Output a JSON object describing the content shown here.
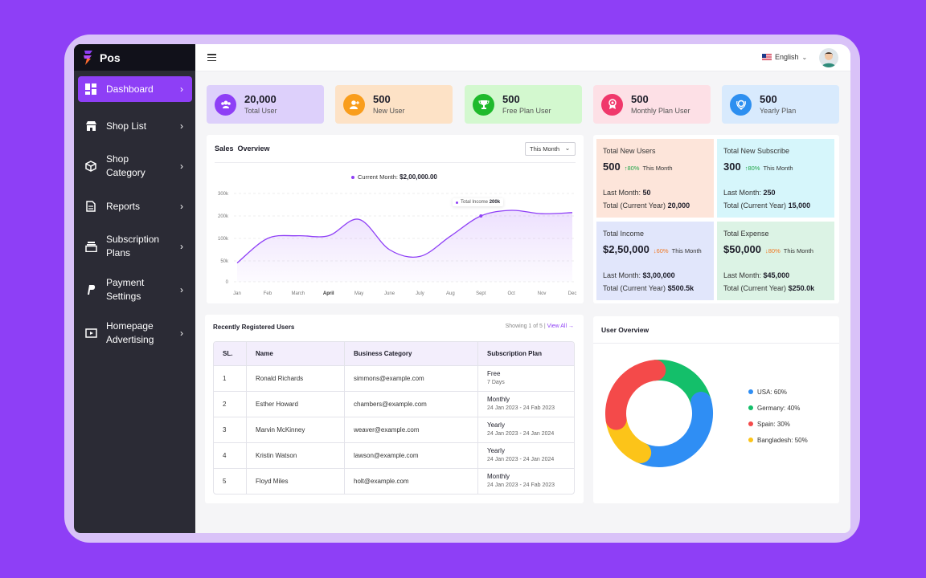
{
  "app": {
    "name": "Pos"
  },
  "sidebar": {
    "items": [
      {
        "label": "Dashboard",
        "icon": "dashboard-icon",
        "active": true
      },
      {
        "label": "Shop List",
        "icon": "shop-icon"
      },
      {
        "label": "Shop\nCategory",
        "icon": "box-icon"
      },
      {
        "label": "Reports",
        "icon": "report-icon"
      },
      {
        "label": "Subscription\nPlans",
        "icon": "subscription-icon"
      },
      {
        "label": "Payment\nSettings",
        "icon": "payment-icon"
      },
      {
        "label": "Homepage\nAdvertising",
        "icon": "advertising-icon"
      }
    ]
  },
  "topbar": {
    "language": "English"
  },
  "stats": [
    {
      "value": "20,000",
      "label": "Total User",
      "bg": "#ddd0fb",
      "iconBg": "#8e3ff6",
      "icon": "users-icon"
    },
    {
      "value": "500",
      "label": "New User",
      "bg": "#fde2c6",
      "iconBg": "#f99d1c",
      "icon": "user-plus-icon"
    },
    {
      "value": "500",
      "label": "Free Plan User",
      "bg": "#d3f8cf",
      "iconBg": "#1fba2c",
      "icon": "trophy-icon"
    },
    {
      "value": "500",
      "label": "Monthly Plan User",
      "bg": "#fde0e6",
      "iconBg": "#f0386b",
      "icon": "badge-icon"
    },
    {
      "value": "500",
      "label": "Yearly Plan",
      "bg": "#d8eafd",
      "iconBg": "#2d8ff0",
      "icon": "award-icon"
    }
  ],
  "sales": {
    "title": "Sales  Overview",
    "period": "This Month",
    "current_label": "Current Month:",
    "current_value": "$2,00,000.00",
    "tooltip_label": "Total Income",
    "tooltip_value": "200k"
  },
  "chart_data": {
    "type": "area",
    "title": "Sales  Overview",
    "categories": [
      "Jan",
      "Feb",
      "March",
      "April",
      "May",
      "June",
      "July",
      "Aug",
      "Sept",
      "Oct",
      "Nov",
      "Dec"
    ],
    "series": [
      {
        "name": "Total Income",
        "values": [
          45,
          100,
          112,
          112,
          185,
          75,
          60,
          110,
          200,
          225,
          210,
          215
        ]
      }
    ],
    "y_ticks": [
      "0",
      "50k",
      "100k",
      "200k",
      "300k"
    ],
    "ylim": [
      0,
      300
    ],
    "color": "#8e3ff6"
  },
  "summary": [
    {
      "title": "Total New Users",
      "value": "500",
      "pct": "↑80%",
      "dir": "up",
      "tm": "This Month",
      "l1_label": "Last Month:",
      "l1_value": "50",
      "l2_label": "Total (Current Year)",
      "l2_value": "20,000",
      "bg": "#fde5da"
    },
    {
      "title": "Total New Subscribe",
      "value": "300",
      "pct": "↑80%",
      "dir": "up",
      "tm": "This Month",
      "l1_label": "Last Month:",
      "l1_value": "250",
      "l2_label": "Total (Current Year)",
      "l2_value": "15,000",
      "bg": "#d6f6fb"
    },
    {
      "title": "Total Income",
      "value": "$2,50,000",
      "pct": "↓60%",
      "dir": "down",
      "tm": "This Month",
      "l1_label": "Last Month:",
      "l1_value": "$3,00,000",
      "l2_label": "Total (Current Year)",
      "l2_value": "$500.5k",
      "bg": "#e1e6fb"
    },
    {
      "title": "Total Expense",
      "value": "$50,000",
      "pct": "↓80%",
      "dir": "down",
      "tm": "This Month",
      "l1_label": "Last Month:",
      "l1_value": "$45,000",
      "l2_label": "Total (Current Year)",
      "l2_value": "$250.0k",
      "bg": "#dcf3e5"
    }
  ],
  "recent": {
    "title": "Recently Registered Users",
    "showing": "Showing 1 of 5 |",
    "view_all": "View All →",
    "columns": [
      "SL.",
      "Name",
      "Business Category",
      "Subscription Plan"
    ],
    "rows": [
      {
        "sl": "1",
        "name": "Ronald Richards",
        "email": "simmons@example.com",
        "plan": "Free",
        "date": "7 Days"
      },
      {
        "sl": "2",
        "name": "Esther Howard",
        "email": "chambers@example.com",
        "plan": "Monthly",
        "date": "24 Jan 2023 - 24 Fab 2023"
      },
      {
        "sl": "3",
        "name": "Marvin McKinney",
        "email": "weaver@example.com",
        "plan": "Yearly",
        "date": "24 Jan 2023 - 24 Jan 2024"
      },
      {
        "sl": "4",
        "name": "Kristin Watson",
        "email": "lawson@example.com",
        "plan": "Yearly",
        "date": "24 Jan 2023 - 24 Jan 2024"
      },
      {
        "sl": "5",
        "name": "Floyd Miles",
        "email": "holt@example.com",
        "plan": "Monthly",
        "date": "24 Jan 2023 - 24 Fab 2023"
      }
    ]
  },
  "user_overview": {
    "title": "User Overview",
    "items": [
      {
        "label": "USA: 60%",
        "color": "#2f8ef4"
      },
      {
        "label": "Germany: 40%",
        "color": "#14bf6a"
      },
      {
        "label": "Spain: 30%",
        "color": "#f44a4a"
      },
      {
        "label": "Bangladesh: 50%",
        "color": "#fcc419"
      }
    ]
  }
}
